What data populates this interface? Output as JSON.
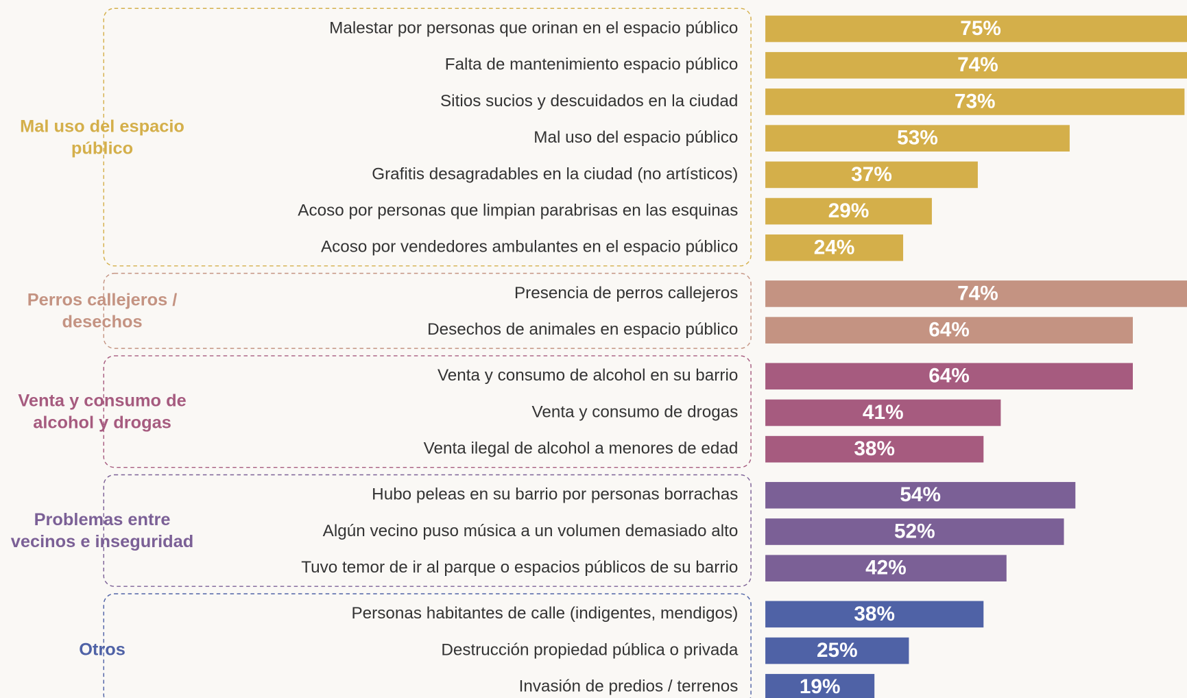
{
  "chart_data": {
    "type": "bar",
    "groups": [
      {
        "name": [
          "Mal uso del espacio",
          "público"
        ],
        "color": "#d4af4a",
        "categories": [
          "Malestar por personas que orinan en el espacio público",
          "Falta de mantenimiento espacio público",
          "Sitios sucios y descuidados en la ciudad",
          "Mal uso del espacio público",
          "Grafitis desagradables en la ciudad (no artísticos)",
          "Acoso por personas que limpian parabrisas en las esquinas",
          "Acoso por vendedores ambulantes en el espacio público"
        ],
        "values": [
          75,
          74,
          73,
          53,
          37,
          29,
          24
        ],
        "value_labels": [
          "75%",
          "74%",
          "73%",
          "53%",
          "37%",
          "29%",
          "24%"
        ]
      },
      {
        "name": [
          "Perros callejeros /",
          "desechos"
        ],
        "color": "#c49382",
        "categories": [
          "Presencia de perros callejeros",
          "Desechos de animales en espacio público"
        ],
        "values": [
          74,
          64
        ],
        "value_labels": [
          "74%",
          "64%"
        ]
      },
      {
        "name": [
          "Venta y consumo de",
          "alcohol y drogas"
        ],
        "color": "#a65b7f",
        "categories": [
          "Venta y consumo de alcohol en su barrio",
          "Venta y consumo de drogas",
          "Venta ilegal de alcohol a menores de edad"
        ],
        "values": [
          64,
          41,
          38
        ],
        "value_labels": [
          "64%",
          "41%",
          "38%"
        ]
      },
      {
        "name": [
          "Problemas entre",
          "vecinos e inseguridad"
        ],
        "color": "#7b6096",
        "categories": [
          "Hubo peleas en su barrio por personas borrachas",
          "Algún vecino puso música a un volumen demasiado alto",
          "Tuvo temor de ir al parque o espacios públicos de su barrio"
        ],
        "values": [
          54,
          52,
          42
        ],
        "value_labels": [
          "54%",
          "52%",
          "42%"
        ]
      },
      {
        "name": [
          "Otros"
        ],
        "color": "#4f62a6",
        "categories": [
          "Personas habitantes de calle (indigentes, mendigos)",
          "Destrucción propiedad pública o privada",
          "Invasión de predios / terrenos"
        ],
        "values": [
          38,
          25,
          19
        ],
        "value_labels": [
          "38%",
          "25%",
          "19%"
        ]
      }
    ]
  }
}
